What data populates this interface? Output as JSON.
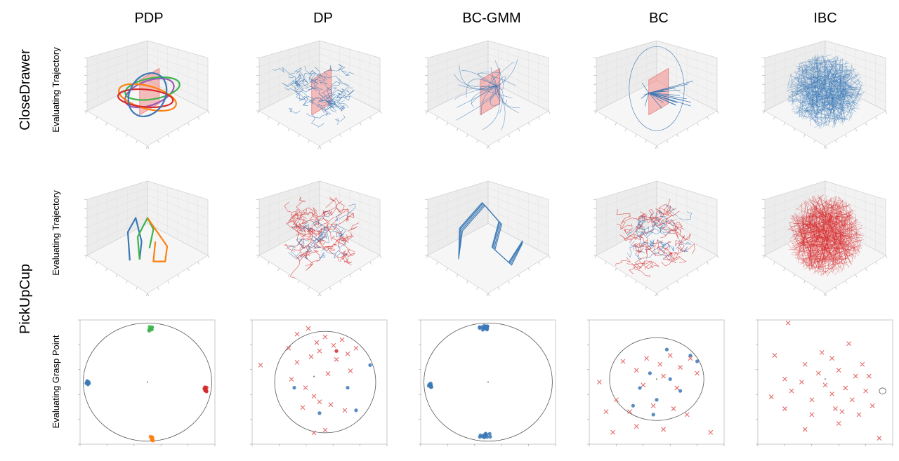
{
  "columns": [
    "PDP",
    "DP",
    "BC-GMM",
    "BC",
    "IBC"
  ],
  "row_groups": [
    {
      "label": "CloseDrawer",
      "rows": [
        0
      ]
    },
    {
      "label": "PickUpCup",
      "rows": [
        1,
        2
      ]
    }
  ],
  "row_labels": [
    "Evaluating Trajectory",
    "Evaluating Trajectory",
    "Evaluating Grasp Point"
  ],
  "colors": {
    "blue": "#3b78b5",
    "red": "#d62728",
    "green": "#3cb44b",
    "orange": "#ff7f0e",
    "purple": "#9b59b6",
    "plane": "#f28b8b",
    "light_red": "#e36b6b"
  },
  "chart_data": [
    {
      "type": "trajectory3d",
      "column": "PDP",
      "task": "CloseDrawer",
      "series": [
        {
          "color": "purple",
          "kind": "loop",
          "loops": [
            {
              "cx": 0.52,
              "cy": 0.5,
              "rx": 0.26,
              "ry": 0.14,
              "rot": -20
            }
          ]
        },
        {
          "color": "green",
          "kind": "loop",
          "loops": [
            {
              "cx": 0.55,
              "cy": 0.45,
              "rx": 0.28,
              "ry": 0.12,
              "rot": -10
            }
          ]
        },
        {
          "color": "orange",
          "kind": "loop",
          "loops": [
            {
              "cx": 0.5,
              "cy": 0.55,
              "rx": 0.3,
              "ry": 0.13,
              "rot": 15
            }
          ]
        },
        {
          "color": "red",
          "kind": "loop",
          "loops": [
            {
              "cx": 0.48,
              "cy": 0.56,
              "rx": 0.28,
              "ry": 0.1,
              "rot": 5
            }
          ]
        },
        {
          "color": "blue",
          "kind": "loop",
          "loops": [
            {
              "cx": 0.5,
              "cy": 0.52,
              "rx": 0.18,
              "ry": 0.26,
              "rot": 30
            }
          ]
        }
      ],
      "plane": true
    },
    {
      "type": "trajectory3d",
      "column": "DP",
      "task": "CloseDrawer",
      "series": [
        {
          "color": "blue",
          "kind": "cloud",
          "n": 60,
          "spread": 0.28
        }
      ],
      "plane": true
    },
    {
      "type": "trajectory3d",
      "column": "BC-GMM",
      "task": "CloseDrawer",
      "series": [
        {
          "color": "blue",
          "kind": "fan",
          "n": 30
        }
      ],
      "plane": true
    },
    {
      "type": "trajectory3d",
      "column": "BC",
      "task": "CloseDrawer",
      "series": [
        {
          "color": "blue",
          "kind": "star",
          "n": 20
        }
      ],
      "plane": true
    },
    {
      "type": "trajectory3d",
      "column": "IBC",
      "task": "CloseDrawer",
      "series": [
        {
          "color": "blue",
          "kind": "dense",
          "n": 400
        }
      ],
      "plane": false
    },
    {
      "type": "trajectory3d",
      "column": "PDP",
      "task": "PickUpCup",
      "series": [
        {
          "color": "blue",
          "kind": "path",
          "pts": [
            [
              0.32,
              0.75
            ],
            [
              0.3,
              0.45
            ],
            [
              0.38,
              0.3
            ],
            [
              0.44,
              0.55
            ],
            [
              0.42,
              0.74
            ]
          ]
        },
        {
          "color": "green",
          "kind": "path",
          "pts": [
            [
              0.42,
              0.74
            ],
            [
              0.4,
              0.5
            ],
            [
              0.5,
              0.3
            ],
            [
              0.56,
              0.42
            ],
            [
              0.52,
              0.62
            ]
          ]
        },
        {
          "color": "orange",
          "kind": "path",
          "pts": [
            [
              0.5,
              0.3
            ],
            [
              0.6,
              0.45
            ],
            [
              0.7,
              0.6
            ],
            [
              0.68,
              0.76
            ],
            [
              0.56,
              0.76
            ],
            [
              0.58,
              0.55
            ]
          ]
        }
      ],
      "plane": false
    },
    {
      "type": "trajectory3d",
      "column": "DP",
      "task": "PickUpCup",
      "series": [
        {
          "color": "red",
          "kind": "cloud",
          "n": 70,
          "spread": 0.3
        },
        {
          "color": "blue",
          "kind": "cloud",
          "n": 25,
          "spread": 0.22
        }
      ],
      "plane": false
    },
    {
      "type": "trajectory3d",
      "column": "BC-GMM",
      "task": "PickUpCup",
      "series": [
        {
          "color": "blue",
          "kind": "tent",
          "n": 14
        }
      ],
      "plane": false
    },
    {
      "type": "trajectory3d",
      "column": "BC",
      "task": "PickUpCup",
      "series": [
        {
          "color": "red",
          "kind": "cloud",
          "n": 60,
          "spread": 0.32
        },
        {
          "color": "blue",
          "kind": "cloud",
          "n": 30,
          "spread": 0.24
        }
      ],
      "plane": false
    },
    {
      "type": "trajectory3d",
      "column": "IBC",
      "task": "PickUpCup",
      "series": [
        {
          "color": "red",
          "kind": "dense",
          "n": 450
        }
      ],
      "plane": false
    },
    {
      "type": "scatter",
      "column": "PDP",
      "task": "PickUpCup",
      "circle": {
        "cx": 0,
        "cy": 0,
        "r": 1
      },
      "xlim": [
        -1.05,
        1.05
      ],
      "ylim": [
        -1.05,
        1.05
      ],
      "clusters": [
        {
          "x": 0.05,
          "y": 0.9,
          "color": "green",
          "marker": "dot",
          "n": 8
        },
        {
          "x": -0.93,
          "y": -0.02,
          "color": "blue",
          "marker": "dot",
          "n": 8
        },
        {
          "x": 0.9,
          "y": -0.12,
          "color": "red",
          "marker": "dot",
          "n": 8
        },
        {
          "x": 0.07,
          "y": -0.95,
          "color": "orange",
          "marker": "dot",
          "n": 8
        }
      ]
    },
    {
      "type": "scatter",
      "column": "DP",
      "task": "PickUpCup",
      "circle": {
        "cx": 0.2,
        "cy": -0.1,
        "r": 0.9
      },
      "xlim": [
        -1.1,
        1.3
      ],
      "ylim": [
        -1.2,
        1.0
      ],
      "points": [
        [
          -0.3,
          0.75,
          "x"
        ],
        [
          -0.1,
          0.85,
          "x"
        ],
        [
          0.05,
          0.6,
          "x"
        ],
        [
          0.2,
          0.7,
          "x"
        ],
        [
          0.35,
          0.55,
          "x"
        ],
        [
          0.5,
          0.65,
          "x"
        ],
        [
          0.1,
          0.45,
          "x"
        ],
        [
          -0.05,
          0.35,
          "x"
        ],
        [
          0.4,
          0.3,
          "x"
        ],
        [
          0.6,
          0.4,
          "x"
        ],
        [
          0.75,
          0.5,
          "x"
        ],
        [
          -0.45,
          0.5,
          "x"
        ],
        [
          -0.95,
          0.2,
          "x"
        ],
        [
          -0.3,
          0.25,
          "x"
        ],
        [
          -0.4,
          -0.05,
          "x"
        ],
        [
          -0.15,
          -0.2,
          "x"
        ],
        [
          0.0,
          -0.35,
          "x"
        ],
        [
          -0.2,
          -0.55,
          "x"
        ],
        [
          0.1,
          -0.45,
          "x"
        ],
        [
          0.3,
          -0.5,
          "x"
        ],
        [
          0.55,
          -0.6,
          "x"
        ],
        [
          0.2,
          -0.95,
          "x"
        ],
        [
          0.0,
          -1.0,
          "x"
        ],
        [
          0.25,
          0.05,
          "x"
        ],
        [
          0.65,
          0.1,
          "x"
        ],
        [
          0.4,
          0.45,
          "dot_red"
        ],
        [
          -0.35,
          -0.2,
          "dot"
        ],
        [
          0.6,
          -0.2,
          "dot"
        ],
        [
          0.75,
          -0.6,
          "dot"
        ],
        [
          0.1,
          -0.65,
          "dot"
        ],
        [
          1.0,
          0.2,
          "dot"
        ]
      ]
    },
    {
      "type": "scatter",
      "column": "BC-GMM",
      "task": "PickUpCup",
      "circle": {
        "cx": 0,
        "cy": 0,
        "r": 1
      },
      "xlim": [
        -1.05,
        1.05
      ],
      "ylim": [
        -1.05,
        1.05
      ],
      "clusters": [
        {
          "x": -0.05,
          "y": 0.92,
          "color": "blue",
          "marker": "dot",
          "n": 14,
          "wide": true
        },
        {
          "x": -0.9,
          "y": -0.05,
          "color": "blue",
          "marker": "dot",
          "n": 8
        },
        {
          "x": -0.05,
          "y": -0.9,
          "color": "blue",
          "marker": "dot",
          "n": 12,
          "wide": true
        }
      ]
    },
    {
      "type": "scatter",
      "column": "BC",
      "task": "PickUpCup",
      "circle": {
        "cx": 0,
        "cy": 0,
        "r": 0.7
      },
      "xlim": [
        -1.0,
        1.0
      ],
      "ylim": [
        -1.1,
        1.0
      ],
      "points": [
        [
          -0.85,
          -0.05,
          "x"
        ],
        [
          -0.5,
          0.3,
          "x"
        ],
        [
          -0.3,
          0.15,
          "x"
        ],
        [
          -0.15,
          0.35,
          "x"
        ],
        [
          0.05,
          0.25,
          "x"
        ],
        [
          0.2,
          0.4,
          "x"
        ],
        [
          0.35,
          0.2,
          "x"
        ],
        [
          0.5,
          0.35,
          "x"
        ],
        [
          0.1,
          0.05,
          "x"
        ],
        [
          -0.2,
          -0.1,
          "x"
        ],
        [
          0.3,
          -0.15,
          "x"
        ],
        [
          -0.6,
          -0.35,
          "x"
        ],
        [
          -0.4,
          -0.55,
          "x"
        ],
        [
          -0.05,
          -0.45,
          "x"
        ],
        [
          0.25,
          -0.5,
          "x"
        ],
        [
          0.45,
          -0.6,
          "x"
        ],
        [
          -0.75,
          -0.55,
          "x"
        ],
        [
          -0.3,
          -0.8,
          "x"
        ],
        [
          0.1,
          -0.85,
          "x"
        ],
        [
          -0.65,
          -0.9,
          "x"
        ],
        [
          0.8,
          -0.9,
          "x"
        ],
        [
          0.6,
          0.1,
          "x"
        ],
        [
          0.15,
          0.5,
          "dot"
        ],
        [
          0.5,
          0.4,
          "dot"
        ],
        [
          0.6,
          0.3,
          "dot"
        ],
        [
          -0.1,
          0.1,
          "dot"
        ],
        [
          0.2,
          0.0,
          "dot"
        ],
        [
          -0.25,
          -0.15,
          "dot"
        ],
        [
          0.35,
          -0.2,
          "dot"
        ],
        [
          0.0,
          -0.35,
          "dot"
        ],
        [
          -0.05,
          -0.6,
          "dot"
        ],
        [
          -0.35,
          -0.45,
          "dot"
        ]
      ]
    },
    {
      "type": "scatter",
      "column": "IBC",
      "task": "PickUpCup",
      "circle": {
        "cx": 0.85,
        "cy": -0.2,
        "r": 0.05
      },
      "xlim": [
        -1.0,
        1.0
      ],
      "ylim": [
        -1.1,
        1.0
      ],
      "points": [
        [
          -0.55,
          0.95,
          "x"
        ],
        [
          0.35,
          0.6,
          "x"
        ],
        [
          -0.75,
          0.4,
          "x"
        ],
        [
          -0.3,
          0.25,
          "x"
        ],
        [
          0.1,
          0.35,
          "x"
        ],
        [
          -0.1,
          0.1,
          "x"
        ],
        [
          0.2,
          0.15,
          "x"
        ],
        [
          0.45,
          0.05,
          "x"
        ],
        [
          0.65,
          0.05,
          "x"
        ],
        [
          -0.6,
          0.0,
          "x"
        ],
        [
          -0.35,
          -0.05,
          "x"
        ],
        [
          0.0,
          -0.1,
          "x"
        ],
        [
          0.3,
          -0.15,
          "x"
        ],
        [
          0.6,
          -0.2,
          "x"
        ],
        [
          -0.8,
          -0.3,
          "x"
        ],
        [
          -0.5,
          -0.2,
          "x"
        ],
        [
          -0.2,
          -0.35,
          "x"
        ],
        [
          0.1,
          -0.25,
          "x"
        ],
        [
          0.4,
          -0.35,
          "x"
        ],
        [
          0.7,
          -0.45,
          "x"
        ],
        [
          -0.6,
          -0.5,
          "x"
        ],
        [
          -0.2,
          -0.6,
          "x"
        ],
        [
          0.15,
          -0.5,
          "x"
        ],
        [
          0.5,
          -0.6,
          "x"
        ],
        [
          -0.3,
          -0.85,
          "x"
        ],
        [
          0.2,
          -0.75,
          "x"
        ],
        [
          0.8,
          -1.0,
          "x"
        ],
        [
          0.55,
          0.25,
          "x"
        ],
        [
          -0.05,
          0.45,
          "x"
        ],
        [
          0.25,
          -0.55,
          "x"
        ]
      ]
    }
  ]
}
